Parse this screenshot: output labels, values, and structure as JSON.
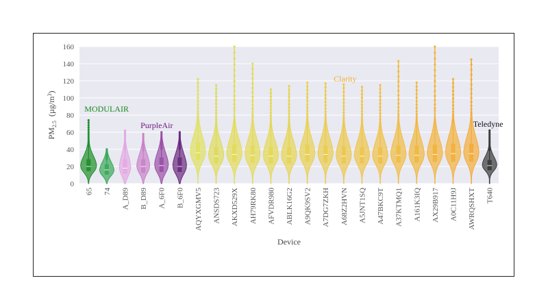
{
  "chart_data": {
    "type": "violin",
    "xlabel": "Device",
    "ylabel_main": "PM",
    "ylabel_sub": "2.5",
    "ylabel_unit_pre": "(µg/m",
    "ylabel_unit_sup": "3",
    "ylabel_unit_post": ")",
    "ylim": [
      0,
      160
    ],
    "yticks": [
      0,
      20,
      40,
      60,
      80,
      100,
      120,
      140,
      160
    ],
    "grid": true,
    "groups": [
      {
        "label": "MODULAIR",
        "color": "#1a8a1a"
      },
      {
        "label": "PurpleAir",
        "color": "#6a1b7a"
      },
      {
        "label": "Clarity",
        "color": "#f0b030"
      },
      {
        "label": "Teledyne",
        "color": "#111111"
      }
    ],
    "devices": [
      {
        "name": "65",
        "group": 0,
        "color": "#1f8f2a",
        "q1": 15,
        "median": 20,
        "q3": 28,
        "max": 74,
        "peak": 20,
        "width": 0.42
      },
      {
        "name": "74",
        "group": 0,
        "color": "#3aa858",
        "q1": 11,
        "median": 16,
        "q3": 22,
        "max": 40,
        "peak": 15,
        "width": 0.38
      },
      {
        "name": "A_D89",
        "group": 1,
        "color": "#e3a9e3",
        "q1": 12,
        "median": 18,
        "q3": 28,
        "max": 62,
        "peak": 18,
        "width": 0.3
      },
      {
        "name": "B_D89",
        "group": 1,
        "color": "#c883c8",
        "q1": 13,
        "median": 20,
        "q3": 28,
        "max": 58,
        "peak": 20,
        "width": 0.34
      },
      {
        "name": "A_6F0",
        "group": 1,
        "color": "#9a4fa6",
        "q1": 14,
        "median": 21,
        "q3": 30,
        "max": 60,
        "peak": 21,
        "width": 0.36
      },
      {
        "name": "B_6F0",
        "group": 1,
        "color": "#6a2a7e",
        "q1": 14,
        "median": 20,
        "q3": 30,
        "max": 60,
        "peak": 20,
        "width": 0.36
      },
      {
        "name": "AQYXGMV5",
        "group": 2,
        "color": "#e0e062",
        "q1": 28,
        "median": 36,
        "q3": 48,
        "max": 122,
        "peak": 36,
        "width": 0.4
      },
      {
        "name": "ANSDS723",
        "group": 2,
        "color": "#dedc5c",
        "q1": 24,
        "median": 32,
        "q3": 42,
        "max": 115,
        "peak": 32,
        "width": 0.4
      },
      {
        "name": "AKXD529X",
        "group": 2,
        "color": "#e2dc58",
        "q1": 26,
        "median": 34,
        "q3": 45,
        "max": 160,
        "peak": 34,
        "width": 0.4
      },
      {
        "name": "AH79RK80",
        "group": 2,
        "color": "#e4da5a",
        "q1": 25,
        "median": 33,
        "q3": 44,
        "max": 140,
        "peak": 33,
        "width": 0.4
      },
      {
        "name": "AFVDR980",
        "group": 2,
        "color": "#e4d856",
        "q1": 24,
        "median": 32,
        "q3": 42,
        "max": 110,
        "peak": 32,
        "width": 0.4
      },
      {
        "name": "ABLK16G2",
        "group": 2,
        "color": "#e6d454",
        "q1": 24,
        "median": 32,
        "q3": 42,
        "max": 114,
        "peak": 32,
        "width": 0.4
      },
      {
        "name": "A9QK9SV2",
        "group": 2,
        "color": "#e8d052",
        "q1": 26,
        "median": 34,
        "q3": 45,
        "max": 118,
        "peak": 34,
        "width": 0.4
      },
      {
        "name": "A7DG7ZKH",
        "group": 2,
        "color": "#eacc50",
        "q1": 25,
        "median": 34,
        "q3": 44,
        "max": 117,
        "peak": 34,
        "width": 0.4
      },
      {
        "name": "A68Z2HVN",
        "group": 2,
        "color": "#ecc84e",
        "q1": 24,
        "median": 32,
        "q3": 43,
        "max": 116,
        "peak": 32,
        "width": 0.4
      },
      {
        "name": "A5JNT1SQ",
        "group": 2,
        "color": "#eec44a",
        "q1": 24,
        "median": 32,
        "q3": 42,
        "max": 113,
        "peak": 32,
        "width": 0.4
      },
      {
        "name": "A47BKC9T",
        "group": 2,
        "color": "#f0c048",
        "q1": 24,
        "median": 32,
        "q3": 42,
        "max": 115,
        "peak": 32,
        "width": 0.4
      },
      {
        "name": "A37KTMQ1",
        "group": 2,
        "color": "#f0bc44",
        "q1": 25,
        "median": 33,
        "q3": 44,
        "max": 143,
        "peak": 33,
        "width": 0.4
      },
      {
        "name": "A161K3IQ",
        "group": 2,
        "color": "#f0b840",
        "q1": 25,
        "median": 33,
        "q3": 44,
        "max": 118,
        "peak": 33,
        "width": 0.4
      },
      {
        "name": "AX29B917",
        "group": 2,
        "color": "#f2b43e",
        "q1": 26,
        "median": 34,
        "q3": 45,
        "max": 160,
        "peak": 34,
        "width": 0.4
      },
      {
        "name": "A0C11H9J",
        "group": 2,
        "color": "#f2b03c",
        "q1": 26,
        "median": 35,
        "q3": 46,
        "max": 122,
        "peak": 35,
        "width": 0.4
      },
      {
        "name": "AWRQSHXT",
        "group": 2,
        "color": "#f2ac3a",
        "q1": 26,
        "median": 35,
        "q3": 46,
        "max": 145,
        "peak": 35,
        "width": 0.4
      },
      {
        "name": "T640",
        "group": 3,
        "color": "#3a3a3a",
        "q1": 16,
        "median": 21,
        "q3": 27,
        "max": 62,
        "peak": 21,
        "width": 0.38
      }
    ]
  }
}
